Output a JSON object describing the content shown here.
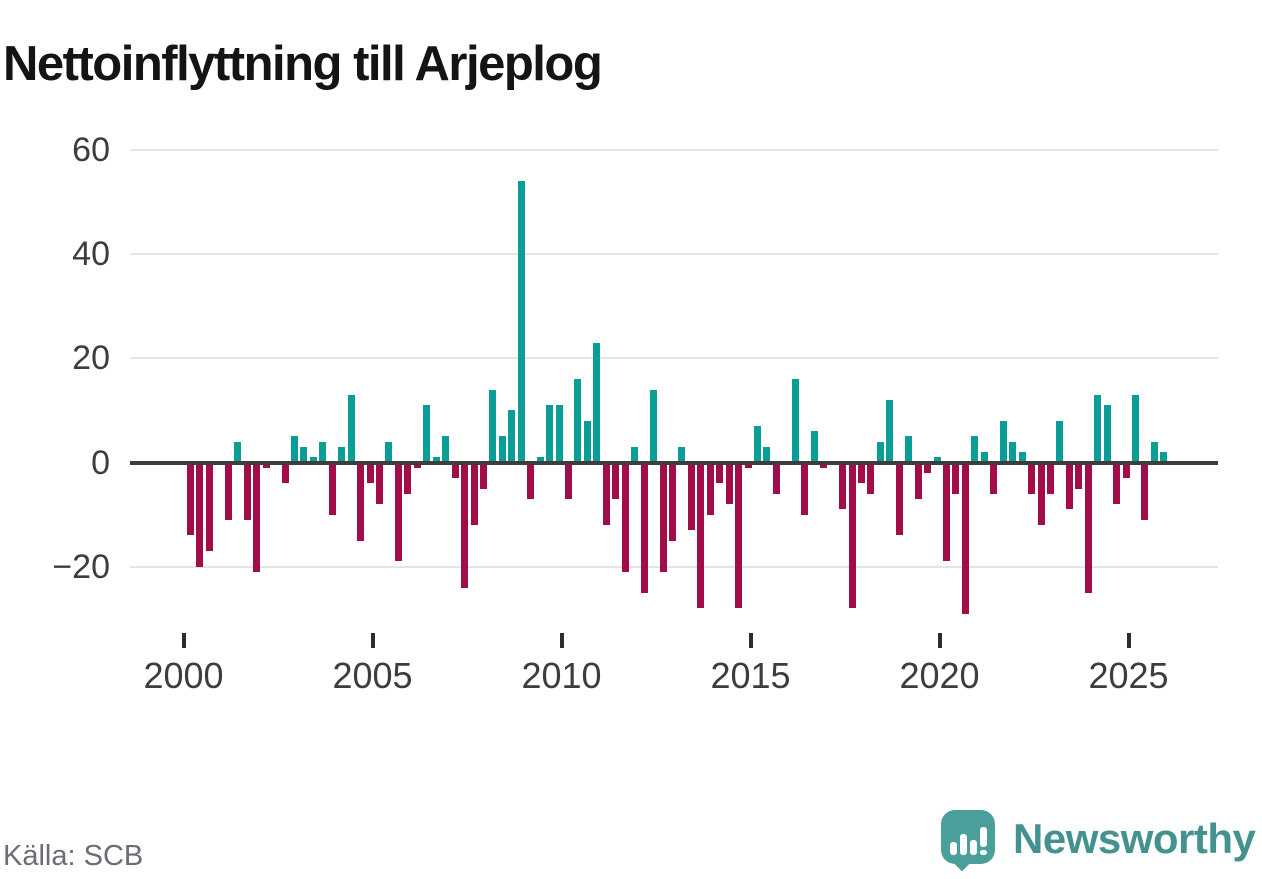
{
  "title": "Nettoinflyttning till Arjeplog",
  "source": "Källa: SCB",
  "brand": {
    "name": "Newsworthy"
  },
  "colors": {
    "positive": "#0a9e96",
    "negative": "#a20d49",
    "axis": "#3d3d3d",
    "gridline": "#e4e4e4",
    "brand_teal": "#4b9f9b"
  },
  "chart_data": {
    "type": "bar",
    "title": "Nettoinflyttning till Arjeplog",
    "xlabel": "",
    "ylabel": "",
    "grid": true,
    "ylim": [
      -30,
      62
    ],
    "y_ticks": [
      60,
      40,
      20,
      0,
      -20
    ],
    "y_tick_labels": [
      "60",
      "40",
      "20",
      "0",
      "−20"
    ],
    "x_ticks": [
      2000,
      2005,
      2010,
      2015,
      2020,
      2025
    ],
    "x_tick_labels": [
      "2000",
      "2005",
      "2010",
      "2015",
      "2020",
      "2025"
    ],
    "series_note": "quarterly net migration, four values per year (Q1-Q4)",
    "series": [
      {
        "year": 2000,
        "q": [
          -14,
          -20,
          -17,
          0
        ]
      },
      {
        "year": 2001,
        "q": [
          -11,
          4,
          -11,
          -21
        ]
      },
      {
        "year": 2002,
        "q": [
          -1,
          0,
          -4,
          5
        ]
      },
      {
        "year": 2003,
        "q": [
          3,
          1,
          4,
          -10
        ]
      },
      {
        "year": 2004,
        "q": [
          3,
          13,
          -15,
          -4
        ]
      },
      {
        "year": 2005,
        "q": [
          -8,
          4,
          -19,
          -6
        ]
      },
      {
        "year": 2006,
        "q": [
          -1,
          11,
          1,
          5
        ]
      },
      {
        "year": 2007,
        "q": [
          -3,
          -24,
          -12,
          -5
        ]
      },
      {
        "year": 2008,
        "q": [
          14,
          5,
          10,
          54
        ]
      },
      {
        "year": 2009,
        "q": [
          -7,
          1,
          11,
          11
        ]
      },
      {
        "year": 2010,
        "q": [
          -7,
          16,
          8,
          23
        ]
      },
      {
        "year": 2011,
        "q": [
          -12,
          -7,
          -21,
          3
        ]
      },
      {
        "year": 2012,
        "q": [
          -25,
          14,
          -21,
          -15
        ]
      },
      {
        "year": 2013,
        "q": [
          3,
          -13,
          -28,
          -10
        ]
      },
      {
        "year": 2014,
        "q": [
          -4,
          -8,
          -28,
          -1
        ]
      },
      {
        "year": 2015,
        "q": [
          7,
          3,
          -6,
          0
        ]
      },
      {
        "year": 2016,
        "q": [
          16,
          -10,
          6,
          -1
        ]
      },
      {
        "year": 2017,
        "q": [
          0,
          -9,
          -28,
          -4
        ]
      },
      {
        "year": 2018,
        "q": [
          -6,
          4,
          12,
          -14
        ]
      },
      {
        "year": 2019,
        "q": [
          5,
          -7,
          -2,
          1
        ]
      },
      {
        "year": 2020,
        "q": [
          -19,
          -6,
          -29,
          5
        ]
      },
      {
        "year": 2021,
        "q": [
          2,
          -6,
          8,
          4
        ]
      },
      {
        "year": 2022,
        "q": [
          2,
          -6,
          -12,
          -6
        ]
      },
      {
        "year": 2023,
        "q": [
          8,
          -9,
          -5,
          -25
        ]
      },
      {
        "year": 2024,
        "q": [
          13,
          11,
          -8,
          -3
        ]
      },
      {
        "year": 2025,
        "q": [
          13,
          -11,
          4,
          2
        ]
      }
    ]
  }
}
